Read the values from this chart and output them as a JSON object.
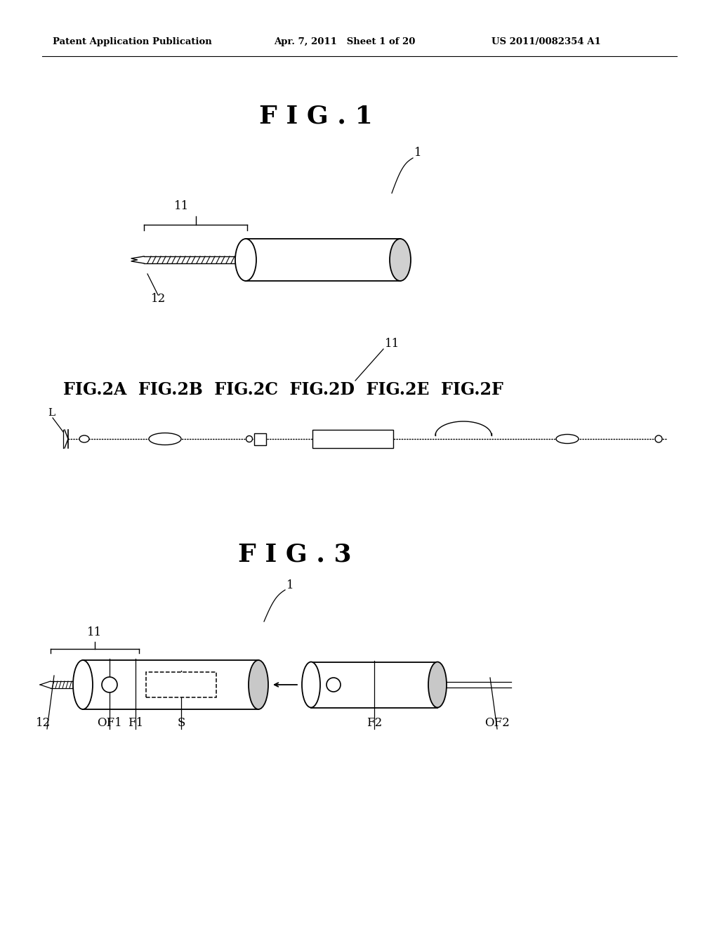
{
  "bg_color": "#ffffff",
  "header_left": "Patent Application Publication",
  "header_mid": "Apr. 7, 2011   Sheet 1 of 20",
  "header_right": "US 2011/0082354 A1",
  "fig1_title": "F I G . 1",
  "fig2_title": "FIG.2A  FIG.2B  FIG.2C  FIG.2D  FIG.2E  FIG.2F",
  "fig3_title": "F I G . 3"
}
